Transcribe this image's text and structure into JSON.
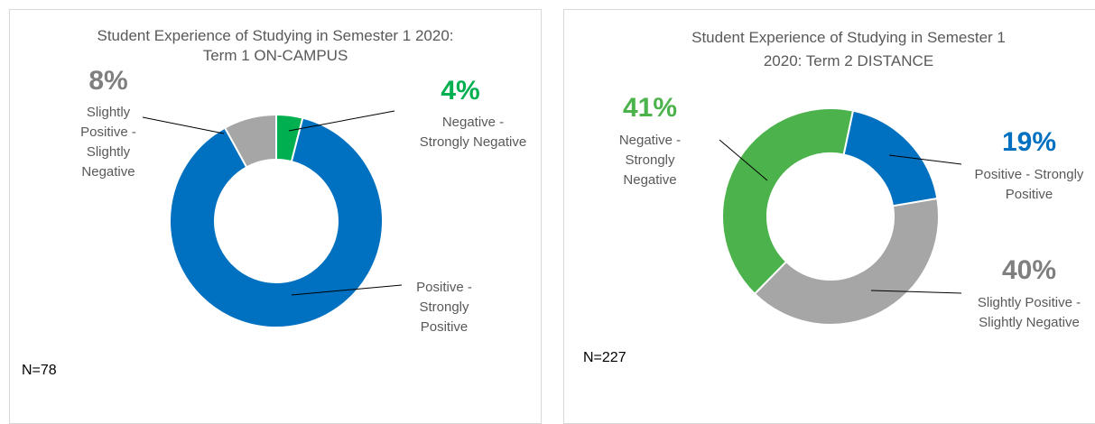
{
  "chart_data": [
    {
      "type": "donut",
      "title": [
        "Student Experience of Studying in Semester 1 2020:",
        "Term 1   ON-CAMPUS"
      ],
      "categories": [
        "Negative - Strongly Negative",
        "Positive - Strongly Positive",
        "Slightly Positive - Slightly Negative"
      ],
      "values": [
        4,
        88,
        8
      ],
      "value_labels": [
        "4%",
        null,
        "8%"
      ],
      "colors": [
        "#00b050",
        "#0070c0",
        "#a6a6a6"
      ],
      "annotation": "N=78"
    },
    {
      "type": "donut",
      "title": [
        "Student Experience of Studying in Semester 1",
        "2020: Term 2 DISTANCE"
      ],
      "categories": [
        "Positive - Strongly Positive",
        "Slightly Positive - Slightly Negative",
        "Negative - Strongly Negative"
      ],
      "values": [
        19,
        40,
        41
      ],
      "value_labels": [
        "19%",
        "40%",
        "41%"
      ],
      "colors": [
        "#0070c0",
        "#a6a6a6",
        "#4cb34c"
      ],
      "annotation": "N=227"
    }
  ]
}
